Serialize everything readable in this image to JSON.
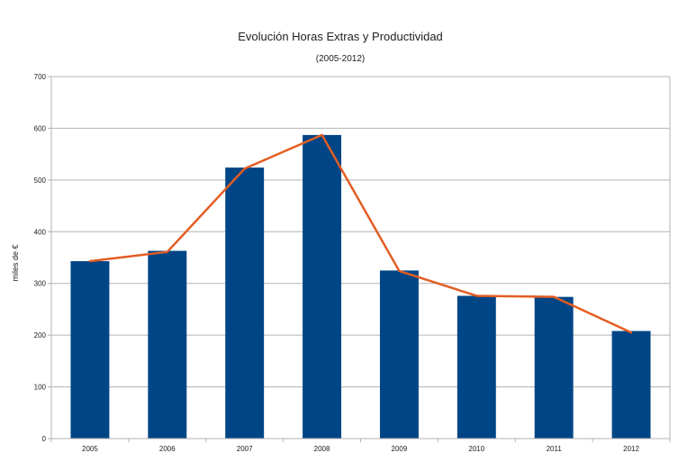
{
  "chart_data": {
    "type": "bar",
    "title": "Evolución Horas Extras y Productividad",
    "subtitle": "(2005-2012)",
    "xlabel": "",
    "ylabel": "miles de €",
    "ylim": [
      0,
      700
    ],
    "yticks": [
      "0",
      "100",
      "200",
      "300",
      "400",
      "500",
      "600",
      "700"
    ],
    "grid": true,
    "categories": [
      "2005",
      "2006",
      "2007",
      "2008",
      "2009",
      "2010",
      "2011",
      "2012"
    ],
    "series": [
      {
        "name": "Horas Extras",
        "kind": "bar",
        "color": "#004586",
        "values": [
          343,
          363,
          524,
          587,
          325,
          276,
          274,
          208
        ]
      },
      {
        "name": "Productividad",
        "kind": "line",
        "color": "#e35d22",
        "values": [
          343,
          361,
          522,
          587,
          324,
          276,
          274,
          205
        ]
      }
    ]
  }
}
